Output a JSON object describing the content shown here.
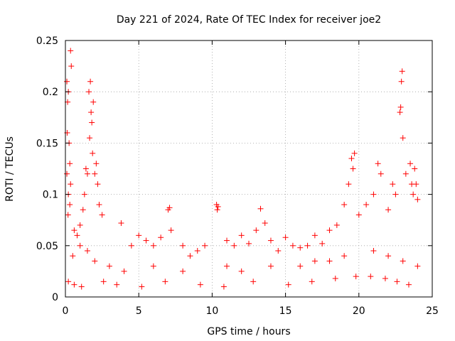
{
  "chart_data": {
    "type": "scatter",
    "title": "Day 221 of 2024, Rate Of TEC Index for receiver joe2",
    "xlabel": "GPS time / hours",
    "ylabel": "ROTI / TECUs",
    "xlim": [
      0,
      25
    ],
    "ylim": [
      0,
      0.25
    ],
    "xticks": [
      0,
      5,
      10,
      15,
      20,
      25
    ],
    "yticks": [
      0,
      0.05,
      0.1,
      0.15,
      0.2,
      0.25
    ],
    "ytick_labels": [
      "0",
      "0.05",
      "0.1",
      "0.15",
      "0.2",
      "0.25"
    ],
    "grid": true,
    "marker": "+",
    "series": [
      {
        "name": "ROTI",
        "color": "#ff0000",
        "x": [
          0.1,
          0.15,
          0.2,
          0.25,
          0.3,
          0.35,
          0.4,
          0.1,
          0.2,
          0.3,
          0.35,
          0.12,
          0.18,
          1.6,
          1.7,
          1.75,
          1.8,
          1.9,
          1.65,
          1.85,
          2.0,
          2.1,
          2.2,
          1.5,
          1.4,
          1.3,
          2.3,
          2.5,
          1.2,
          1.0,
          0.8,
          0.6,
          3.8,
          4.5,
          5.0,
          5.5,
          6.0,
          6.5,
          7.0,
          7.1,
          7.2,
          8.0,
          8.5,
          9.0,
          9.5,
          10.3,
          10.35,
          10.4,
          11.0,
          11.5,
          12.0,
          12.5,
          13.0,
          13.3,
          13.6,
          14.0,
          14.5,
          15.0,
          15.5,
          16.0,
          16.5,
          17.0,
          17.5,
          18.0,
          18.5,
          19.0,
          19.3,
          19.5,
          19.6,
          19.7,
          20.0,
          20.5,
          21.0,
          21.3,
          21.5,
          22.0,
          22.3,
          22.5,
          22.8,
          22.85,
          22.9,
          22.95,
          23.0,
          23.2,
          23.5,
          23.6,
          23.7,
          23.8,
          23.9,
          24.0,
          0.5,
          1.0,
          1.5,
          2.0,
          3.0,
          4.0,
          6.0,
          8.0,
          11.0,
          12.0,
          14.0,
          16.0,
          17.0,
          18.0,
          19.0,
          21.0,
          22.0,
          23.0,
          24.0,
          0.2,
          0.6,
          1.1,
          2.6,
          3.5,
          5.2,
          6.8,
          9.2,
          10.8,
          12.8,
          15.2,
          16.8,
          18.4,
          19.8,
          20.8,
          21.8,
          22.6,
          23.4
        ],
        "y": [
          0.21,
          0.19,
          0.2,
          0.15,
          0.13,
          0.24,
          0.225,
          0.12,
          0.1,
          0.09,
          0.11,
          0.16,
          0.08,
          0.2,
          0.21,
          0.18,
          0.17,
          0.19,
          0.155,
          0.14,
          0.12,
          0.13,
          0.11,
          0.12,
          0.125,
          0.1,
          0.09,
          0.08,
          0.085,
          0.07,
          0.06,
          0.065,
          0.072,
          0.05,
          0.06,
          0.055,
          0.05,
          0.058,
          0.085,
          0.087,
          0.065,
          0.05,
          0.04,
          0.045,
          0.05,
          0.09,
          0.085,
          0.088,
          0.055,
          0.05,
          0.06,
          0.052,
          0.065,
          0.086,
          0.072,
          0.055,
          0.045,
          0.058,
          0.05,
          0.048,
          0.05,
          0.06,
          0.052,
          0.065,
          0.07,
          0.09,
          0.11,
          0.135,
          0.125,
          0.14,
          0.08,
          0.09,
          0.1,
          0.13,
          0.12,
          0.085,
          0.11,
          0.1,
          0.18,
          0.185,
          0.21,
          0.22,
          0.155,
          0.12,
          0.13,
          0.11,
          0.1,
          0.125,
          0.11,
          0.095,
          0.04,
          0.05,
          0.045,
          0.035,
          0.03,
          0.025,
          0.03,
          0.025,
          0.03,
          0.025,
          0.03,
          0.03,
          0.035,
          0.035,
          0.04,
          0.045,
          0.04,
          0.035,
          0.03,
          0.015,
          0.012,
          0.01,
          0.015,
          0.012,
          0.01,
          0.015,
          0.012,
          0.01,
          0.015,
          0.012,
          0.015,
          0.018,
          0.02,
          0.02,
          0.018,
          0.015,
          0.012
        ]
      }
    ]
  }
}
